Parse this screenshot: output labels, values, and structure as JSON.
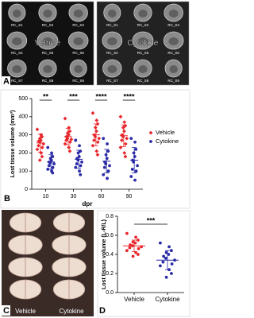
{
  "mri": {
    "panel_label": "A",
    "groups": [
      {
        "label": "Vehicle",
        "slices": [
          "RC_S1",
          "RC_S2",
          "RC_S3",
          "RC_S4",
          "RC_S5",
          "RC_S6",
          "RC_S7",
          "RC_S8",
          "RC_S9"
        ]
      },
      {
        "label": "Cytokine",
        "slices": [
          "RC_S1",
          "RC_S2",
          "RC_S3",
          "RC_S4",
          "RC_S5",
          "RC_S6",
          "RC_S7",
          "RC_S8",
          "RC_S9"
        ]
      }
    ]
  },
  "photos": {
    "panel_label": "C",
    "labels": [
      "Vehicle",
      "Cytokine"
    ]
  },
  "chart_data": [
    {
      "type": "strip",
      "panel_label": "B",
      "y_label": "Lost tissue volume (mm³)",
      "x_label": "dpr",
      "categories": [
        "10",
        "30",
        "60",
        "90"
      ],
      "ylim": [
        0,
        500
      ],
      "yticks": [
        0,
        100,
        200,
        300,
        400,
        500
      ],
      "legend": "right",
      "annotations": [
        "**",
        "***",
        "****",
        "****"
      ],
      "series": [
        {
          "name": "Vehicle",
          "color": "#e8262b",
          "marker": "diamond",
          "values": [
            [
              330,
              300,
              290,
              280,
              270,
              265,
              260,
              250,
              240,
              230,
              220,
              200,
              180,
              160
            ],
            [
              390,
              340,
              320,
              310,
              300,
              290,
              280,
              275,
              270,
              260,
              250,
              230,
              210
            ],
            [
              420,
              380,
              360,
              340,
              320,
              300,
              290,
              280,
              270,
              260,
              240,
              210,
              190
            ],
            [
              400,
              370,
              350,
              340,
              320,
              300,
              290,
              280,
              270,
              250,
              230,
              200,
              180
            ]
          ],
          "means": [
            255,
            290,
            300,
            295
          ],
          "errors": [
            50,
            45,
            60,
            60
          ]
        },
        {
          "name": "Cytokine",
          "color": "#2b2ba8",
          "marker": "circle",
          "values": [
            [
              230,
              200,
              180,
              170,
              160,
              150,
              145,
              140,
              130,
              120,
              110,
              100,
              90
            ],
            [
              270,
              240,
              210,
              200,
              180,
              170,
              160,
              150,
              140,
              130,
              120,
              100,
              80
            ],
            [
              280,
              250,
              210,
              190,
              170,
              150,
              140,
              130,
              120,
              100,
              80,
              60
            ],
            [
              280,
              260,
              220,
              200,
              180,
              160,
              150,
              130,
              110,
              100,
              70,
              50
            ]
          ],
          "means": [
            150,
            165,
            155,
            160
          ],
          "errors": [
            40,
            50,
            65,
            70
          ]
        }
      ]
    },
    {
      "type": "strip",
      "panel_label": "D",
      "y_label": "Lost tissue volume (L-R/L)",
      "categories": [
        "Vehicle",
        "Cytokine"
      ],
      "ylim": [
        0,
        0.8
      ],
      "yticks": [
        {
          "value": 0,
          "label": "0.0"
        },
        0.2,
        0.4,
        0.6,
        0.8
      ],
      "annotations": [
        "***"
      ],
      "series": [
        {
          "name": "Vehicle",
          "color": "#e8262b",
          "marker": "circle",
          "slot": 0,
          "values": [
            [
              0.62,
              0.58,
              0.55,
              0.53,
              0.52,
              0.5,
              0.49,
              0.48,
              0.47,
              0.46,
              0.44,
              0.42,
              0.4,
              0.38
            ]
          ],
          "means": [
            0.49
          ],
          "errors": [
            0.06
          ]
        },
        {
          "name": "Cytokine",
          "color": "#2b2ba8",
          "marker": "circle",
          "slot": 1,
          "values": [
            [
              0.52,
              0.48,
              0.44,
              0.42,
              0.4,
              0.38,
              0.36,
              0.34,
              0.32,
              0.3,
              0.28,
              0.24,
              0.2,
              0.16
            ]
          ],
          "means": [
            0.34
          ],
          "errors": [
            0.1
          ]
        }
      ]
    }
  ]
}
